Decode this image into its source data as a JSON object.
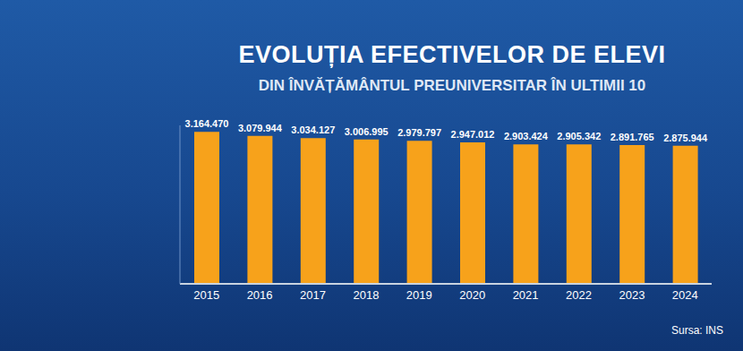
{
  "chart_data": {
    "type": "bar",
    "title": "EVOLUȚIA EFECTIVELOR DE ELEVI",
    "subtitle": "DIN ÎNVĂȚĂMÂNTUL PREUNIVERSITAR ÎN ULTIMII 10",
    "source": "Sursa: INS",
    "categories": [
      "2015",
      "2016",
      "2017",
      "2018",
      "2019",
      "2020",
      "2021",
      "2022",
      "2023",
      "2024"
    ],
    "values": [
      3164470,
      3079944,
      3034127,
      3006995,
      2979797,
      2947012,
      2903424,
      2905342,
      2891765,
      2875944
    ],
    "value_labels": [
      "3.164.470",
      "3.079.944",
      "3.034.127",
      "3.006.995",
      "2.979.797",
      "2.947.012",
      "2.903.424",
      "2.905.342",
      "2.891.765",
      "2.875.944"
    ],
    "color": "#f7a21b",
    "ylim": [
      0,
      3300000
    ],
    "data_labels": true,
    "tick_labels": "x",
    "grid": false
  }
}
